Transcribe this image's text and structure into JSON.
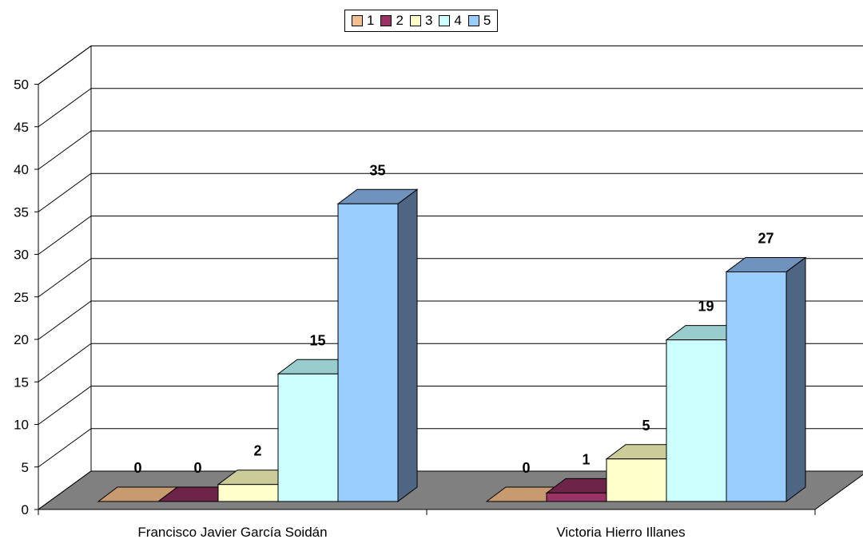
{
  "chart_data": {
    "type": "bar",
    "categories": [
      "Francisco Javier García Soidán",
      "Victoria Hierro Illanes"
    ],
    "series": [
      {
        "name": "1",
        "values": [
          0,
          0
        ],
        "color": "#F0C090",
        "top": "#C89A70",
        "side": "#B08060"
      },
      {
        "name": "2",
        "values": [
          0,
          1
        ],
        "color": "#993366",
        "top": "#6E2348",
        "side": "#5E1E3D"
      },
      {
        "name": "3",
        "values": [
          2,
          5
        ],
        "color": "#FFFFCC",
        "top": "#CCCC99",
        "side": "#B8B88A"
      },
      {
        "name": "4",
        "values": [
          15,
          19
        ],
        "color": "#CCFFFF",
        "top": "#99CCCC",
        "side": "#88B5B5"
      },
      {
        "name": "5",
        "values": [
          35,
          27
        ],
        "color": "#99CCFF",
        "top": "#6F93BC",
        "side": "#4E6683"
      }
    ],
    "data_labels": [
      [
        "0",
        "0",
        "2",
        "15",
        "35"
      ],
      [
        "0",
        "1",
        "5",
        "19",
        "27"
      ]
    ],
    "yticks": [
      "0",
      "5",
      "10",
      "15",
      "20",
      "25",
      "30",
      "35",
      "40",
      "45",
      "50"
    ],
    "ylim": [
      0,
      50
    ],
    "grid": true,
    "legend_position": "top-center",
    "floor_color": "#808080"
  }
}
